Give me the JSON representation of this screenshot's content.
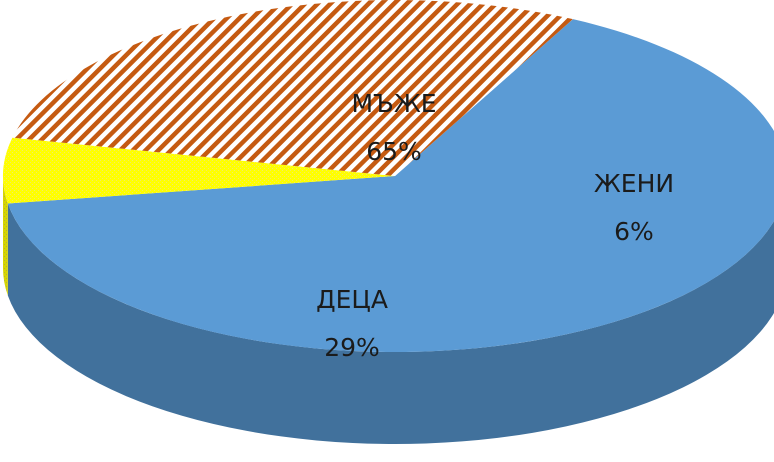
{
  "chart_data": {
    "type": "pie",
    "style": "3d",
    "title": "",
    "legend": "none",
    "slices": [
      {
        "label": "МЪЖЕ",
        "value": 65,
        "display": "65%",
        "color": "#5b9bd5",
        "fill": "solid"
      },
      {
        "label": "ЖЕНИ",
        "value": 6,
        "display": "6%",
        "color": "#ffff00",
        "fill": "pattern"
      },
      {
        "label": "ДЕЦА",
        "value": 29,
        "display": "29%",
        "color": "#c55a11",
        "fill": "diagonal-stripes"
      }
    ]
  }
}
